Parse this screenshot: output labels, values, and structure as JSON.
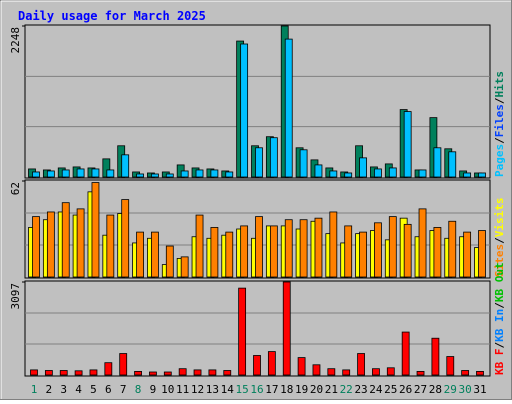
{
  "title": "Daily usage for March 2025",
  "days": [
    "1",
    "2",
    "3",
    "4",
    "5",
    "6",
    "7",
    "8",
    "9",
    "10",
    "11",
    "12",
    "13",
    "14",
    "15",
    "16",
    "17",
    "18",
    "19",
    "20",
    "21",
    "22",
    "23",
    "24",
    "25",
    "26",
    "27",
    "28",
    "29",
    "30",
    "31"
  ],
  "weekend": [
    true,
    false,
    false,
    false,
    false,
    false,
    false,
    true,
    false,
    false,
    false,
    false,
    false,
    false,
    true,
    true,
    false,
    false,
    false,
    false,
    false,
    true,
    false,
    false,
    false,
    false,
    false,
    false,
    true,
    true,
    false
  ],
  "day_color": "#000000",
  "weekend_color": "#00805c",
  "separator": "/",
  "chart_data": [
    {
      "type": "bar",
      "ylim": [
        0,
        2248
      ],
      "yticks": [
        2248
      ],
      "legend": [
        {
          "name": "Pages",
          "color": "#00c0ff"
        },
        {
          "name": "Files",
          "color": "#0040ff"
        },
        {
          "name": "Hits",
          "color": "#00805c"
        }
      ],
      "series": [
        {
          "color": "#00805c",
          "values": [
            120,
            105,
            135,
            150,
            135,
            270,
            465,
            75,
            60,
            75,
            180,
            135,
            120,
            90,
            2024,
            465,
            600,
            2248,
            435,
            255,
            135,
            75,
            465,
            150,
            195,
            1004,
            105,
            884,
            420,
            90,
            60
          ]
        },
        {
          "color": "#00c0ff",
          "values": [
            75,
            90,
            105,
            120,
            120,
            105,
            330,
            45,
            45,
            45,
            90,
            105,
            105,
            75,
            1980,
            435,
            585,
            2053,
            405,
            180,
            90,
            60,
            285,
            120,
            135,
            974,
            105,
            435,
            375,
            60,
            60
          ]
        }
      ]
    },
    {
      "type": "bar",
      "ylim": [
        0,
        62
      ],
      "yticks": [
        62
      ],
      "legend": [
        {
          "name": "Sites",
          "color": "#ff8000"
        },
        {
          "name": "Visits",
          "color": "#ffff00"
        }
      ],
      "series": [
        {
          "color": "#ffff00",
          "values": [
            32,
            37,
            42,
            40,
            55,
            27,
            41,
            22,
            25,
            8,
            12,
            26,
            25,
            27,
            31,
            25,
            33,
            33,
            31,
            36,
            28,
            22,
            28,
            30,
            24,
            38,
            26,
            30,
            25,
            26,
            19
          ]
        },
        {
          "color": "#ff8000",
          "values": [
            39,
            42,
            48,
            44,
            61,
            40,
            50,
            29,
            29,
            20,
            13,
            40,
            32,
            29,
            33,
            39,
            33,
            37,
            37,
            38,
            42,
            33,
            29,
            35,
            39,
            34,
            44,
            32,
            36,
            29,
            30
          ]
        }
      ]
    },
    {
      "type": "bar",
      "ylim": [
        0,
        3097
      ],
      "yticks": [
        3097
      ],
      "legend": [
        {
          "name": "KB F",
          "color": "#ff0000"
        },
        {
          "name": "KB In",
          "color": "#0080ff"
        },
        {
          "name": "KB Out",
          "color": "#00c000"
        }
      ],
      "series": [
        {
          "color": "#ff0000",
          "values": [
            170,
            150,
            150,
            140,
            170,
            410,
            715,
            120,
            100,
            100,
            210,
            170,
            170,
            150,
            2893,
            650,
            780,
            3097,
            580,
            340,
            210,
            170,
            715,
            210,
            240,
            1430,
            120,
            1225,
            615,
            150,
            120
          ]
        }
      ]
    }
  ]
}
